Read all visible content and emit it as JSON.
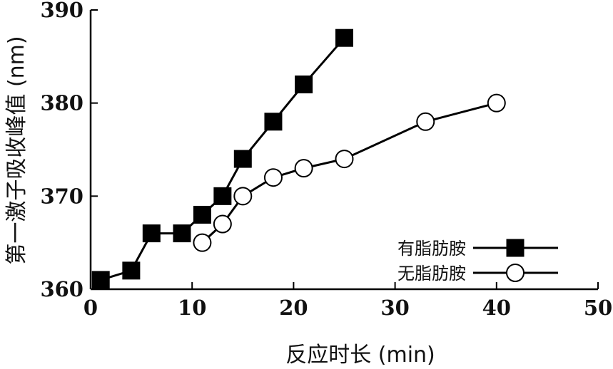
{
  "chart_data": {
    "type": "line",
    "xlabel": "反应时长 (min)",
    "ylabel": "第一激子吸收峰值 (nm)",
    "xlim": [
      0,
      50
    ],
    "ylim": [
      360,
      390
    ],
    "x_ticks": [
      "0",
      "10",
      "20",
      "30",
      "40",
      "50"
    ],
    "y_ticks": [
      "360",
      "370",
      "380",
      "390"
    ],
    "grid": false,
    "legend_position": "bottom-right",
    "series": [
      {
        "name": "有脂肪胺",
        "marker": "filled-square",
        "color": "#000000",
        "x": [
          1,
          4,
          6,
          9,
          11,
          13,
          15,
          18,
          21,
          25
        ],
        "y": [
          361,
          362,
          366,
          366,
          368,
          370,
          374,
          378,
          382,
          387
        ]
      },
      {
        "name": "无脂肪胺",
        "marker": "open-circle",
        "color": "#000000",
        "x": [
          11,
          13,
          15,
          18,
          21,
          25,
          33,
          40
        ],
        "y": [
          365,
          367,
          370,
          372,
          373,
          374,
          378,
          380
        ]
      }
    ]
  }
}
